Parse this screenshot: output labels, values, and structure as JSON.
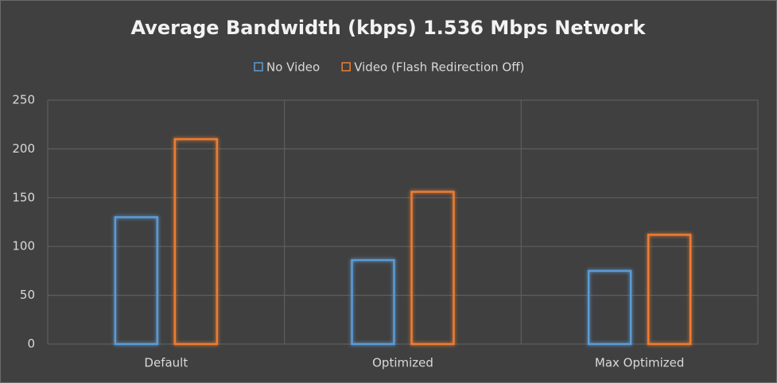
{
  "chart_data": {
    "type": "bar",
    "title": "Average Bandwidth (kbps) 1.536 Mbps Network",
    "categories": [
      "Default",
      "Optimized",
      "Max Optimized"
    ],
    "series": [
      {
        "name": "No Video",
        "color": "#5b9bd5",
        "values": [
          130,
          86,
          75
        ]
      },
      {
        "name": "Video (Flash Redirection Off)",
        "color": "#ed7d31",
        "values": [
          210,
          156,
          112
        ]
      }
    ],
    "ylim": [
      0,
      250
    ],
    "yticks": [
      0,
      50,
      100,
      150,
      200,
      250
    ],
    "grid": true,
    "legend": "top"
  }
}
